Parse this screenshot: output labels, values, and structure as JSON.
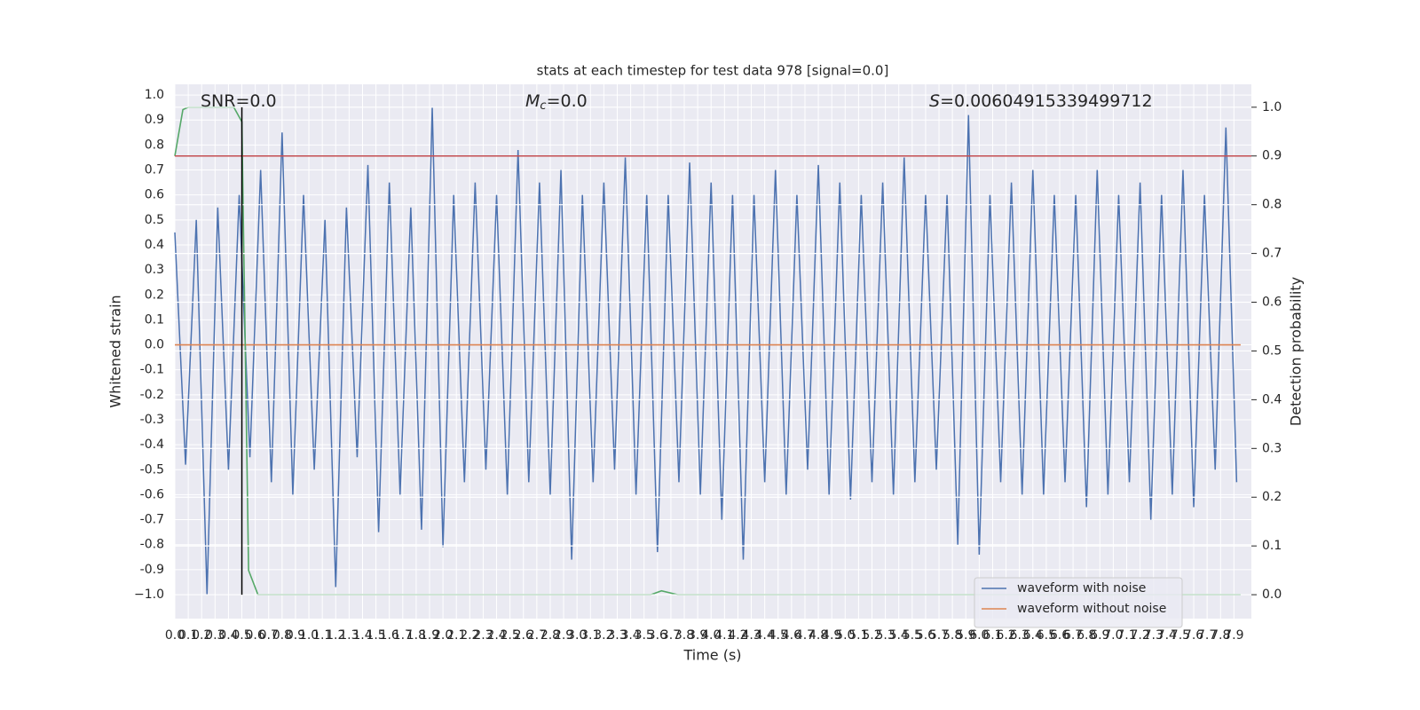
{
  "chart_data": {
    "type": "line",
    "title": "stats at each timestep for test data 978 [signal=0.0]",
    "x_label": "Time (s)",
    "y_label": "Whitened strain",
    "y2_label": "Detection probability",
    "xlim": [
      0,
      8.03
    ],
    "ylim": [
      -1.096,
      1.043
    ],
    "y2lim": [
      -0.049,
      1.047
    ],
    "grid": true,
    "legend": "lower right",
    "xticks": [
      {
        "value": 0,
        "label": "0.0"
      },
      0.1,
      0.2,
      0.3,
      0.4,
      0.5,
      0.6,
      0.7,
      0.8,
      0.9,
      {
        "value": 1,
        "label": "1.0"
      },
      1.1,
      1.2,
      1.3,
      1.4,
      1.5,
      1.6,
      1.7,
      1.8,
      1.9,
      {
        "value": 2,
        "label": "2.0"
      },
      2.1,
      2.2,
      2.3,
      2.4,
      2.5,
      2.6,
      2.7,
      2.8,
      2.9,
      {
        "value": 3,
        "label": "3.0"
      },
      3.1,
      3.2,
      3.3,
      3.4,
      3.5,
      3.6,
      3.7,
      3.8,
      3.9,
      {
        "value": 4,
        "label": "4.0"
      },
      4.1,
      4.2,
      4.3,
      4.4,
      4.5,
      4.6,
      4.7,
      4.8,
      4.9,
      {
        "value": 5,
        "label": "5.0"
      },
      5.1,
      5.2,
      5.3,
      5.4,
      5.5,
      5.6,
      5.7,
      5.8,
      5.9,
      {
        "value": 6,
        "label": "6.0"
      },
      6.1,
      6.2,
      6.3,
      6.4,
      6.5,
      6.6,
      6.7,
      6.8,
      6.9,
      {
        "value": 7,
        "label": "7.0"
      },
      7.1,
      7.2,
      7.3,
      7.4,
      7.5,
      7.6,
      7.7,
      7.8,
      7.9
    ],
    "yticks": [
      {
        "value": -1,
        "label": "−1.0"
      },
      -0.9,
      -0.8,
      -0.7,
      -0.6,
      -0.5,
      -0.4,
      -0.3,
      -0.2,
      -0.1,
      {
        "value": 0,
        "label": "0.0"
      },
      0.1,
      0.2,
      0.3,
      0.4,
      0.5,
      0.6,
      0.7,
      0.8,
      0.9,
      {
        "value": 1,
        "label": "1.0"
      }
    ],
    "y2ticks": [
      {
        "value": 0,
        "label": "0.0"
      },
      0.1,
      0.2,
      0.3,
      0.4,
      0.5,
      0.6,
      0.7,
      0.8,
      0.9,
      {
        "value": 1,
        "label": "1.0"
      }
    ],
    "annotations": [
      {
        "parts": [
          "SNR=0.0"
        ]
      },
      {
        "parts": [
          "M",
          "c",
          "=0.0"
        ]
      },
      {
        "parts": [
          "S",
          "=0.00604915339499712"
        ]
      }
    ],
    "series": [
      {
        "name": "waveform with noise",
        "color": "#4c72b0",
        "axis": "y",
        "x": [
          0,
          0.08,
          0.16,
          0.24,
          0.32,
          0.4,
          0.48,
          0.56,
          0.64,
          0.72,
          0.8,
          0.88,
          0.96,
          1.04,
          1.12,
          1.2,
          1.28,
          1.36,
          1.44,
          1.52,
          1.6,
          1.68,
          1.76,
          1.84,
          1.92,
          2,
          2.08,
          2.16,
          2.24,
          2.32,
          2.4,
          2.48,
          2.56,
          2.64,
          2.72,
          2.8,
          2.88,
          2.96,
          3.04,
          3.12,
          3.2,
          3.28,
          3.36,
          3.44,
          3.52,
          3.6,
          3.68,
          3.76,
          3.84,
          3.92,
          4,
          4.08,
          4.16,
          4.24,
          4.32,
          4.4,
          4.48,
          4.56,
          4.64,
          4.72,
          4.8,
          4.88,
          4.96,
          5.04,
          5.12,
          5.2,
          5.28,
          5.36,
          5.44,
          5.52,
          5.6,
          5.68,
          5.76,
          5.84,
          5.92,
          6,
          6.08,
          6.16,
          6.24,
          6.32,
          6.4,
          6.48,
          6.56,
          6.64,
          6.72,
          6.8,
          6.88,
          6.96,
          7.04,
          7.12,
          7.2,
          7.28,
          7.36,
          7.44,
          7.52,
          7.6,
          7.68,
          7.76,
          7.84,
          7.92
        ],
        "values": [
          0.45,
          -0.48,
          0.5,
          -1.0,
          0.55,
          -0.5,
          0.6,
          -0.45,
          0.7,
          -0.55,
          0.85,
          -0.6,
          0.6,
          -0.5,
          0.5,
          -0.97,
          0.55,
          -0.45,
          0.72,
          -0.75,
          0.65,
          -0.6,
          0.55,
          -0.74,
          0.95,
          -0.81,
          0.6,
          -0.55,
          0.65,
          -0.5,
          0.6,
          -0.6,
          0.78,
          -0.55,
          0.65,
          -0.6,
          0.7,
          -0.86,
          0.6,
          -0.55,
          0.65,
          -0.5,
          0.75,
          -0.6,
          0.6,
          -0.83,
          0.6,
          -0.55,
          0.73,
          -0.6,
          0.65,
          -0.7,
          0.6,
          -0.86,
          0.6,
          -0.55,
          0.7,
          -0.6,
          0.6,
          -0.5,
          0.72,
          -0.6,
          0.65,
          -0.62,
          0.6,
          -0.55,
          0.65,
          -0.6,
          0.75,
          -0.55,
          0.6,
          -0.5,
          0.6,
          -0.8,
          0.92,
          -0.84,
          0.6,
          -0.55,
          0.65,
          -0.6,
          0.7,
          -0.6,
          0.6,
          -0.55,
          0.6,
          -0.65,
          0.7,
          -0.6,
          0.6,
          -0.55,
          0.65,
          -0.7,
          0.6,
          -0.6,
          0.7,
          -0.65,
          0.6,
          -0.5,
          0.87,
          -0.55
        ]
      },
      {
        "name": "waveform without noise",
        "color": "#dd8452",
        "axis": "y",
        "x": [
          0,
          7.95
        ],
        "values": [
          0,
          0
        ]
      },
      {
        "color": "#55a868",
        "axis": "y2",
        "x": [
          0,
          0.06,
          0.1,
          0.44,
          0.5,
          0.55,
          0.62,
          0.8,
          3.55,
          3.63,
          3.75,
          7.95
        ],
        "values": [
          0.9,
          0.995,
          1.0,
          1.0,
          0.97,
          0.05,
          0.0,
          0.0,
          0.0,
          0.008,
          0.0,
          0.0
        ]
      }
    ],
    "hlines": [
      {
        "value": 0.9,
        "axis": "y2",
        "color": "#c44e52"
      }
    ],
    "vlines": [
      {
        "x": 0.5,
        "ymin": 0,
        "ymax": 1,
        "axis": "y2",
        "color": "#000000"
      }
    ]
  }
}
